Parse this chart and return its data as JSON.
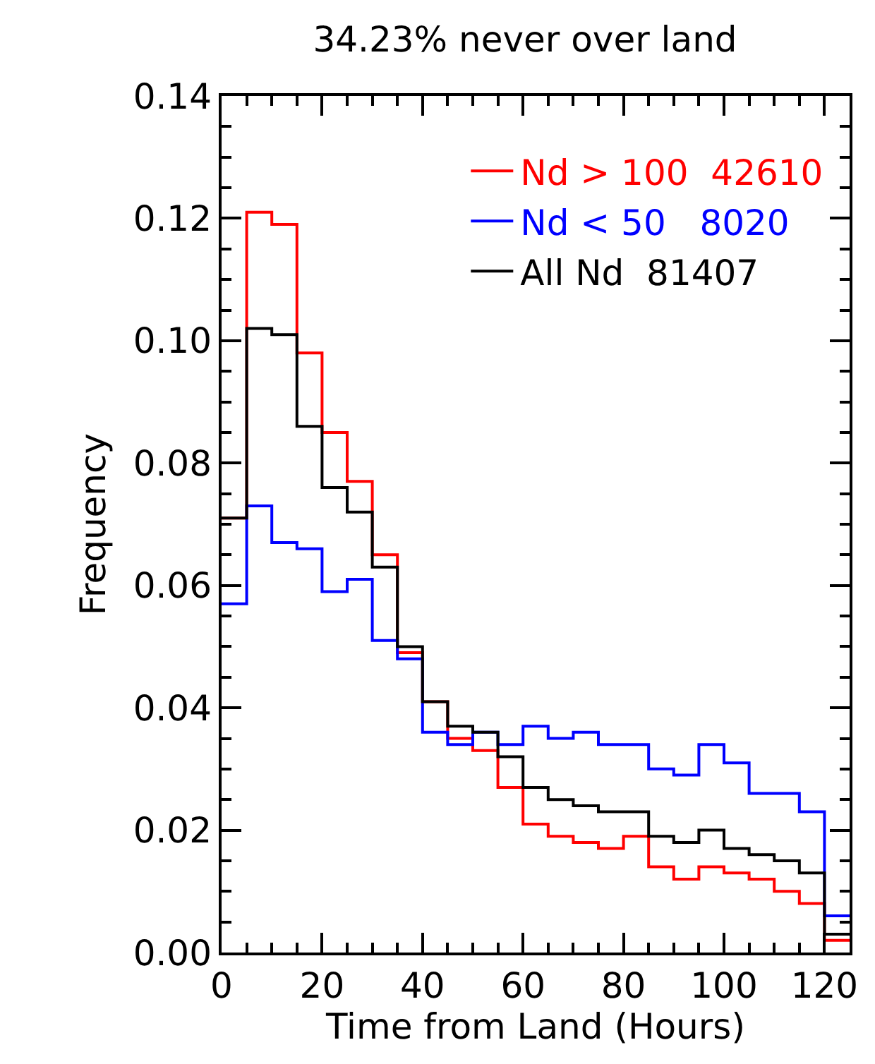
{
  "chart_data": {
    "type": "histogram",
    "title": "34.23% never over land",
    "xlabel": "Time from Land (Hours)",
    "ylabel": "Frequency",
    "bins": [
      0,
      5,
      10,
      15,
      20,
      25,
      30,
      35,
      40,
      45,
      50,
      55,
      60,
      65,
      70,
      75,
      80,
      85,
      90,
      95,
      100,
      105,
      110,
      115,
      120,
      125
    ],
    "series": [
      {
        "name": "Nd > 100  42610",
        "color": "#ff0000",
        "values": [
          0.071,
          0.121,
          0.119,
          0.098,
          0.085,
          0.077,
          0.065,
          0.049,
          0.041,
          0.035,
          0.033,
          0.027,
          0.021,
          0.019,
          0.018,
          0.017,
          0.019,
          0.014,
          0.012,
          0.014,
          0.013,
          0.012,
          0.01,
          0.008,
          0.002
        ]
      },
      {
        "name": "Nd < 50   8020",
        "color": "#0000ff",
        "values": [
          0.057,
          0.073,
          0.067,
          0.066,
          0.059,
          0.061,
          0.051,
          0.048,
          0.036,
          0.034,
          0.036,
          0.034,
          0.037,
          0.035,
          0.036,
          0.034,
          0.034,
          0.03,
          0.029,
          0.034,
          0.031,
          0.026,
          0.026,
          0.023,
          0.006
        ]
      },
      {
        "name": "All Nd  81407",
        "color": "#000000",
        "values": [
          0.071,
          0.102,
          0.101,
          0.086,
          0.076,
          0.072,
          0.063,
          0.05,
          0.041,
          0.037,
          0.036,
          0.032,
          0.027,
          0.025,
          0.024,
          0.023,
          0.023,
          0.019,
          0.018,
          0.02,
          0.017,
          0.016,
          0.015,
          0.013,
          0.003
        ]
      }
    ],
    "xlim": [
      0,
      125
    ],
    "xticks": [
      0,
      20,
      40,
      60,
      80,
      100,
      120
    ],
    "ylim": [
      0,
      0.14
    ],
    "yticks": [
      {
        "value": 0,
        "label": "0.00"
      },
      {
        "value": 0.02,
        "label": "0.02"
      },
      {
        "value": 0.04,
        "label": "0.04"
      },
      {
        "value": 0.06,
        "label": "0.06"
      },
      {
        "value": 0.08,
        "label": "0.08"
      },
      {
        "value": 0.1,
        "label": "0.10"
      },
      {
        "value": 0.12,
        "label": "0.12"
      },
      {
        "value": 0.14,
        "label": "0.14"
      }
    ],
    "grid": false,
    "legend": "top right"
  }
}
